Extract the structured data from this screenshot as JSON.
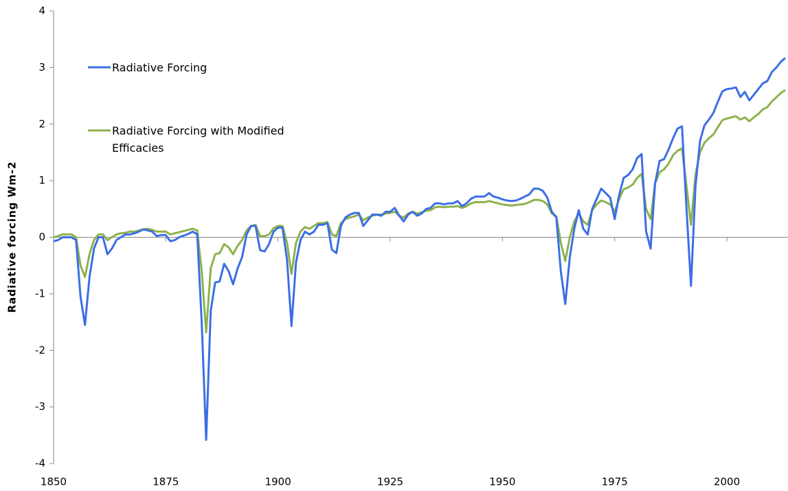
{
  "chart_data": {
    "type": "line",
    "y_label": "Radiative forcing Wm-2",
    "x": [
      1850,
      1851,
      1852,
      1853,
      1854,
      1855,
      1856,
      1857,
      1858,
      1859,
      1860,
      1861,
      1862,
      1863,
      1864,
      1865,
      1866,
      1867,
      1868,
      1869,
      1870,
      1871,
      1872,
      1873,
      1874,
      1875,
      1876,
      1877,
      1878,
      1879,
      1880,
      1881,
      1882,
      1883,
      1884,
      1885,
      1886,
      1887,
      1888,
      1889,
      1890,
      1891,
      1892,
      1893,
      1894,
      1895,
      1896,
      1897,
      1898,
      1899,
      1900,
      1901,
      1902,
      1903,
      1904,
      1905,
      1906,
      1907,
      1908,
      1909,
      1910,
      1911,
      1912,
      1913,
      1914,
      1915,
      1916,
      1917,
      1918,
      1919,
      1920,
      1921,
      1922,
      1923,
      1924,
      1925,
      1926,
      1927,
      1928,
      1929,
      1930,
      1931,
      1932,
      1933,
      1934,
      1935,
      1936,
      1937,
      1938,
      1939,
      1940,
      1941,
      1942,
      1943,
      1944,
      1945,
      1946,
      1947,
      1948,
      1949,
      1950,
      1951,
      1952,
      1953,
      1954,
      1955,
      1956,
      1957,
      1958,
      1959,
      1960,
      1961,
      1962,
      1963,
      1964,
      1965,
      1966,
      1967,
      1968,
      1969,
      1970,
      1971,
      1972,
      1973,
      1974,
      1975,
      1976,
      1977,
      1978,
      1979,
      1980,
      1981,
      1982,
      1983,
      1984,
      1985,
      1986,
      1987,
      1988,
      1989,
      1990,
      1991,
      1992,
      1993,
      1994,
      1995,
      1996,
      1997,
      1998,
      1999,
      2000,
      2001,
      2002,
      2003,
      2004,
      2005,
      2006,
      2007,
      2008,
      2009,
      2010,
      2011,
      2012,
      2013
    ],
    "series": [
      {
        "name": "Radiative Forcing",
        "color": "#3b6ee6",
        "values": [
          -0.07,
          -0.05,
          0,
          0,
          0,
          -0.05,
          -1.05,
          -1.55,
          -0.7,
          -0.2,
          0,
          0,
          -0.3,
          -0.2,
          -0.05,
          0,
          0.05,
          0.05,
          0.07,
          0.1,
          0.14,
          0.12,
          0.1,
          0.02,
          0.04,
          0.04,
          -0.07,
          -0.05,
          0,
          0.03,
          0.06,
          0.1,
          0.05,
          -1.5,
          -3.58,
          -1.3,
          -0.8,
          -0.78,
          -0.47,
          -0.6,
          -0.83,
          -0.55,
          -0.35,
          0.05,
          0.2,
          0.2,
          -0.23,
          -0.25,
          -0.12,
          0.1,
          0.17,
          0.17,
          -0.4,
          -1.57,
          -0.45,
          -0.05,
          0.1,
          0.05,
          0.1,
          0.22,
          0.22,
          0.25,
          -0.22,
          -0.28,
          0.2,
          0.35,
          0.4,
          0.43,
          0.43,
          0.2,
          0.3,
          0.4,
          0.4,
          0.38,
          0.45,
          0.45,
          0.52,
          0.38,
          0.28,
          0.4,
          0.45,
          0.38,
          0.42,
          0.5,
          0.52,
          0.6,
          0.6,
          0.58,
          0.6,
          0.6,
          0.64,
          0.55,
          0.6,
          0.68,
          0.72,
          0.72,
          0.72,
          0.78,
          0.72,
          0.7,
          0.67,
          0.65,
          0.64,
          0.65,
          0.68,
          0.72,
          0.76,
          0.86,
          0.86,
          0.82,
          0.7,
          0.45,
          0.35,
          -0.6,
          -1.18,
          -0.35,
          0.15,
          0.48,
          0.15,
          0.05,
          0.5,
          0.68,
          0.86,
          0.78,
          0.7,
          0.32,
          0.75,
          1.05,
          1.1,
          1.2,
          1.4,
          1.47,
          0.1,
          -0.2,
          0.95,
          1.35,
          1.38,
          1.55,
          1.75,
          1.92,
          1.96,
          0.5,
          -0.86,
          0.9,
          1.7,
          1.98,
          2.08,
          2.2,
          2.4,
          2.58,
          2.62,
          2.63,
          2.65,
          2.48,
          2.57,
          2.42,
          2.52,
          2.62,
          2.72,
          2.76,
          2.92,
          3.0,
          3.1,
          3.17
        ]
      },
      {
        "name": "Radiative Forcing with Modified Efficacies",
        "color": "#8db14c",
        "values": [
          0,
          0.02,
          0.05,
          0.05,
          0.05,
          0,
          -0.5,
          -0.7,
          -0.3,
          -0.05,
          0.05,
          0.05,
          -0.05,
          0,
          0.05,
          0.07,
          0.08,
          0.1,
          0.1,
          0.12,
          0.14,
          0.15,
          0.13,
          0.1,
          0.1,
          0.1,
          0.05,
          0.07,
          0.09,
          0.11,
          0.13,
          0.15,
          0.12,
          -0.6,
          -1.68,
          -0.55,
          -0.3,
          -0.28,
          -0.12,
          -0.18,
          -0.3,
          -0.15,
          -0.05,
          0.12,
          0.2,
          0.22,
          0.02,
          0.02,
          0.05,
          0.16,
          0.2,
          0.2,
          -0.1,
          -0.65,
          -0.1,
          0.1,
          0.18,
          0.15,
          0.2,
          0.25,
          0.25,
          0.27,
          0.05,
          0.02,
          0.25,
          0.32,
          0.35,
          0.37,
          0.4,
          0.3,
          0.35,
          0.38,
          0.4,
          0.4,
          0.42,
          0.43,
          0.45,
          0.38,
          0.35,
          0.42,
          0.45,
          0.42,
          0.44,
          0.47,
          0.48,
          0.53,
          0.54,
          0.53,
          0.54,
          0.54,
          0.55,
          0.52,
          0.55,
          0.6,
          0.62,
          0.62,
          0.62,
          0.64,
          0.62,
          0.6,
          0.58,
          0.57,
          0.56,
          0.57,
          0.58,
          0.59,
          0.62,
          0.66,
          0.66,
          0.64,
          0.58,
          0.42,
          0.37,
          -0.1,
          -0.42,
          0,
          0.28,
          0.42,
          0.28,
          0.22,
          0.48,
          0.58,
          0.65,
          0.62,
          0.58,
          0.45,
          0.68,
          0.85,
          0.88,
          0.93,
          1.05,
          1.12,
          0.5,
          0.32,
          0.95,
          1.15,
          1.2,
          1.3,
          1.45,
          1.53,
          1.57,
          0.9,
          0.22,
          1.1,
          1.5,
          1.67,
          1.75,
          1.82,
          1.95,
          2.07,
          2.1,
          2.12,
          2.14,
          2.08,
          2.12,
          2.05,
          2.12,
          2.18,
          2.26,
          2.3,
          2.4,
          2.47,
          2.55,
          2.6
        ]
      }
    ],
    "xlim": [
      1850,
      2013
    ],
    "xticks": [
      1850,
      1875,
      1900,
      1925,
      1950,
      1975,
      2000
    ],
    "ylim": [
      -4,
      4
    ],
    "yticks": [
      -4,
      -3,
      -2,
      -1,
      0,
      1,
      2,
      3,
      4
    ],
    "legend": "upper left"
  }
}
